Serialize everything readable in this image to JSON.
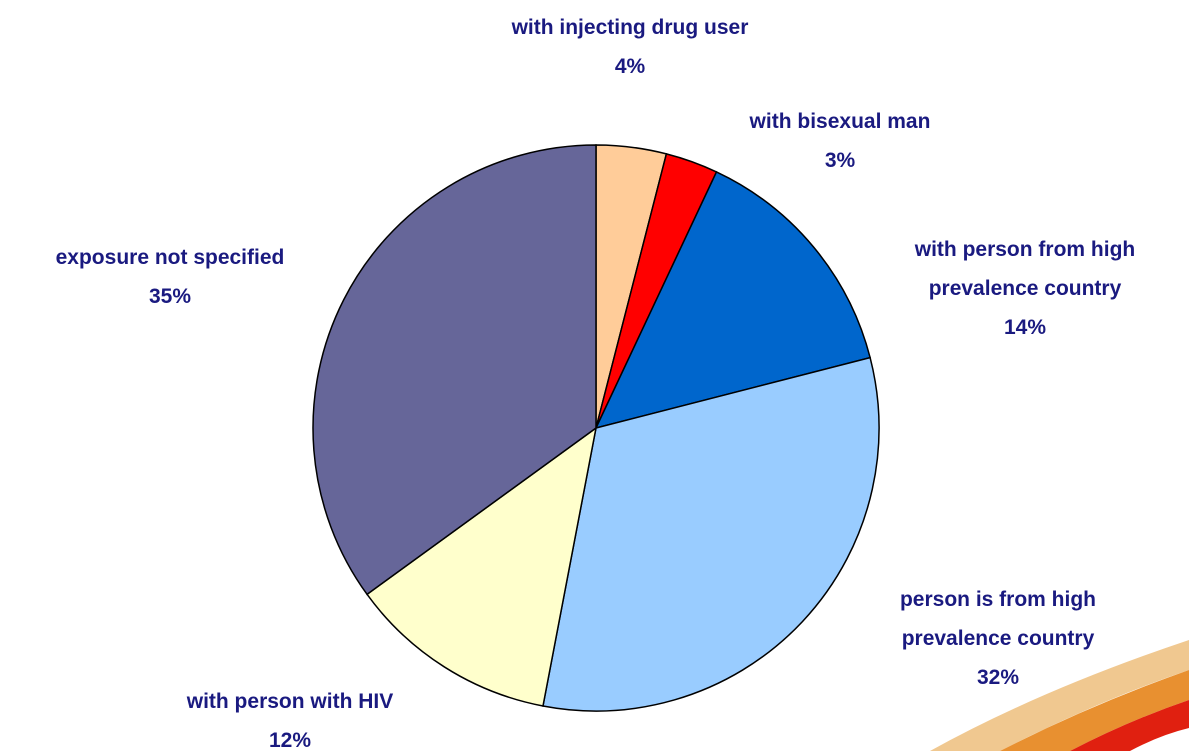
{
  "chart_data": {
    "type": "pie",
    "categories": [
      "with injecting drug user",
      "with bisexual man",
      "with person from high prevalence country",
      "person is from high prevalence country",
      "with person with HIV",
      "exposure not specified"
    ],
    "values": [
      4,
      3,
      14,
      32,
      12,
      35
    ],
    "value_labels": [
      "4%",
      "3%",
      "14%",
      "32%",
      "12%",
      "35%"
    ],
    "colors": [
      "#FFCC99",
      "#FF0000",
      "#0066CC",
      "#99CCFF",
      "#FFFFCC",
      "#666699"
    ]
  }
}
